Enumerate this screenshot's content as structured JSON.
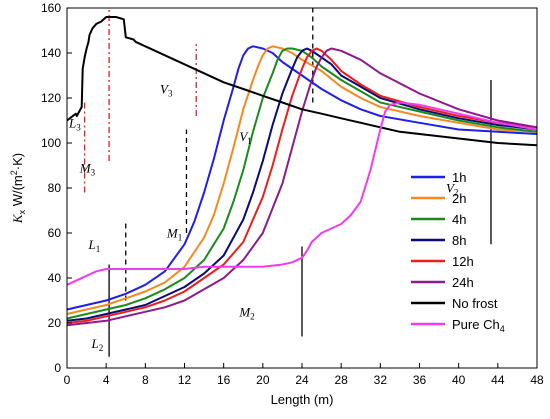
{
  "chart_data": {
    "type": "line",
    "title": "",
    "xlabel": "Length (m)",
    "ylabel": {
      "main": "K",
      "sub": "x",
      "unit_pre": " W/(m",
      "unit_sup": "2",
      "unit_post": "·K)"
    },
    "xlim": [
      0,
      48
    ],
    "ylim": [
      0,
      160
    ],
    "xticks": [
      0,
      4,
      8,
      12,
      16,
      20,
      24,
      28,
      32,
      36,
      40,
      44,
      48
    ],
    "yticks": [
      0,
      20,
      40,
      60,
      80,
      100,
      120,
      140,
      160
    ],
    "grid": false,
    "legend_position": "center-right",
    "series": [
      {
        "name": "1h",
        "color": "#1f1fe8",
        "x": [
          0,
          2,
          4,
          6,
          8,
          10,
          12,
          13,
          14,
          15,
          16,
          17,
          17.5,
          18,
          18.5,
          19,
          20,
          21,
          22,
          24,
          26,
          28,
          30,
          32,
          36,
          40,
          44,
          48
        ],
        "y": [
          26,
          28,
          30,
          33,
          37,
          43,
          55,
          65,
          78,
          93,
          110,
          125,
          133,
          139,
          142,
          143,
          142,
          140,
          136,
          130,
          124,
          119,
          115,
          112,
          109,
          106,
          105,
          104
        ]
      },
      {
        "name": "2h",
        "color": "#f5891f",
        "x": [
          0,
          2,
          4,
          6,
          8,
          10,
          12,
          14,
          15,
          16,
          17,
          18,
          19,
          19.5,
          20,
          20.5,
          21,
          22,
          23,
          24,
          26,
          28,
          30,
          32,
          36,
          40,
          44,
          48
        ],
        "y": [
          24,
          26,
          28,
          31,
          34,
          38,
          45,
          58,
          68,
          82,
          98,
          115,
          128,
          134,
          139,
          142,
          143,
          142,
          140,
          137,
          132,
          125,
          120,
          116,
          112,
          109,
          106,
          105
        ]
      },
      {
        "name": "4h",
        "color": "#1a8a1a",
        "x": [
          0,
          2,
          4,
          6,
          8,
          10,
          12,
          14,
          16,
          17,
          18,
          19,
          20,
          21,
          21.5,
          22,
          22.5,
          23,
          24,
          25,
          26,
          28,
          30,
          32,
          36,
          40,
          44,
          48
        ],
        "y": [
          22,
          24,
          26,
          28,
          31,
          35,
          40,
          48,
          62,
          74,
          88,
          105,
          120,
          131,
          137,
          141,
          142,
          142,
          141,
          138,
          134,
          128,
          123,
          118,
          114,
          110,
          107,
          105
        ]
      },
      {
        "name": "8h",
        "color": "#0a0a78",
        "x": [
          0,
          2,
          4,
          6,
          8,
          10,
          12,
          14,
          16,
          18,
          19,
          20,
          21,
          22,
          23,
          23.5,
          24,
          24.5,
          25,
          26,
          27,
          28,
          30,
          32,
          36,
          40,
          44,
          48
        ],
        "y": [
          21,
          22,
          24,
          26,
          28,
          32,
          36,
          42,
          50,
          66,
          78,
          92,
          108,
          122,
          133,
          138,
          141,
          142,
          141,
          138,
          135,
          130,
          125,
          120,
          115,
          111,
          108,
          106
        ]
      },
      {
        "name": "12h",
        "color": "#ee1c1c",
        "x": [
          0,
          2,
          4,
          6,
          8,
          10,
          12,
          14,
          16,
          18,
          20,
          21,
          22,
          23,
          24,
          24.5,
          25,
          25.5,
          26,
          27,
          28,
          30,
          32,
          36,
          40,
          44,
          48
        ],
        "y": [
          20,
          21,
          23,
          25,
          27,
          30,
          34,
          40,
          46,
          56,
          76,
          90,
          106,
          121,
          133,
          138,
          141,
          142,
          141,
          137,
          132,
          126,
          121,
          116,
          112,
          109,
          107
        ]
      },
      {
        "name": "24h",
        "color": "#8c1a8c",
        "x": [
          0,
          2,
          4,
          6,
          8,
          10,
          12,
          14,
          16,
          18,
          20,
          22,
          23,
          24,
          25,
          25.5,
          26,
          26.5,
          27,
          28,
          30,
          32,
          36,
          40,
          44,
          48
        ],
        "y": [
          19,
          20,
          21,
          23,
          25,
          27,
          30,
          35,
          40,
          48,
          60,
          82,
          98,
          114,
          128,
          134,
          138,
          141,
          142,
          141,
          137,
          131,
          122,
          115,
          110,
          107
        ]
      },
      {
        "name": "No frost",
        "color": "#000000",
        "x": [
          0,
          0.9,
          1.0,
          1.5,
          1.6,
          1.8,
          2.0,
          2.2,
          2.3,
          2.6,
          3.0,
          3.5,
          4,
          5,
          5.8,
          6,
          6.8,
          7,
          8,
          10,
          12,
          14,
          16,
          18,
          20,
          22,
          24,
          26,
          28,
          30,
          32,
          34,
          36,
          40,
          44,
          48
        ],
        "y": [
          110,
          113,
          112,
          116,
          133,
          138,
          142,
          145,
          148,
          151,
          153,
          154,
          156,
          156,
          155,
          147,
          146,
          145,
          143,
          139,
          135,
          131,
          127,
          124,
          121,
          118,
          115,
          113,
          111,
          109,
          107,
          105,
          104,
          102,
          100,
          99
        ]
      },
      {
        "name": "Pure Ch",
        "name_sub": "4",
        "color": "#f03cf0",
        "x": [
          0,
          1,
          2,
          3,
          4,
          4.5,
          5,
          6,
          8,
          10,
          12,
          14,
          16,
          18,
          20,
          22,
          23,
          24,
          24.5,
          25,
          26,
          27,
          28,
          29,
          30,
          31,
          32,
          32.5,
          33,
          34,
          36,
          40,
          44,
          48
        ],
        "y": [
          37,
          39,
          41,
          43,
          44,
          44,
          44,
          44,
          44,
          44,
          44,
          45,
          45,
          45,
          45,
          46,
          47,
          49,
          52,
          56,
          60,
          62,
          64,
          68,
          74,
          88,
          106,
          114,
          117,
          118,
          117,
          113,
          109,
          106
        ]
      }
    ],
    "annotations": [
      {
        "label": "L",
        "sub": "3",
        "x": 0.2,
        "y": 107
      },
      {
        "label": "M",
        "sub": "3",
        "x": 1.3,
        "y": 87
      },
      {
        "label": "V",
        "sub": "3",
        "x": 9.5,
        "y": 122
      },
      {
        "label": "V",
        "sub": "1",
        "x": 17.6,
        "y": 101
      },
      {
        "label": "M",
        "sub": "1",
        "x": 10.2,
        "y": 58
      },
      {
        "label": "L",
        "sub": "1",
        "x": 2.2,
        "y": 53
      },
      {
        "label": "M",
        "sub": "2",
        "x": 17.6,
        "y": 23
      },
      {
        "label": "L",
        "sub": "2",
        "x": 2.5,
        "y": 9
      },
      {
        "label": "V",
        "sub": "2",
        "x": 38.7,
        "y": 78
      }
    ],
    "markers": [
      {
        "style": "dashdot",
        "color": "#e32020",
        "x": 1.8,
        "y": [
          78,
          118
        ]
      },
      {
        "style": "dashdot",
        "color": "#e32020",
        "x": 4.3,
        "y": [
          92,
          160
        ]
      },
      {
        "style": "dashdot",
        "color": "#e32020",
        "x": 13.2,
        "y": [
          112,
          144
        ]
      },
      {
        "style": "dashed",
        "color": "#000000",
        "x": 12.2,
        "y": [
          60,
          106
        ]
      },
      {
        "style": "dashed",
        "color": "#000000",
        "x": 6.0,
        "y": [
          30,
          65
        ]
      },
      {
        "style": "dashed",
        "color": "#000000",
        "x": 25.1,
        "y": [
          118,
          160
        ]
      },
      {
        "style": "solid",
        "color": "#000000",
        "x": 4.3,
        "y": [
          5,
          46
        ]
      },
      {
        "style": "solid",
        "color": "#000000",
        "x": 24.0,
        "y": [
          14,
          54
        ]
      },
      {
        "style": "solid",
        "color": "#000000",
        "x": 43.3,
        "y": [
          55,
          128
        ]
      }
    ]
  }
}
